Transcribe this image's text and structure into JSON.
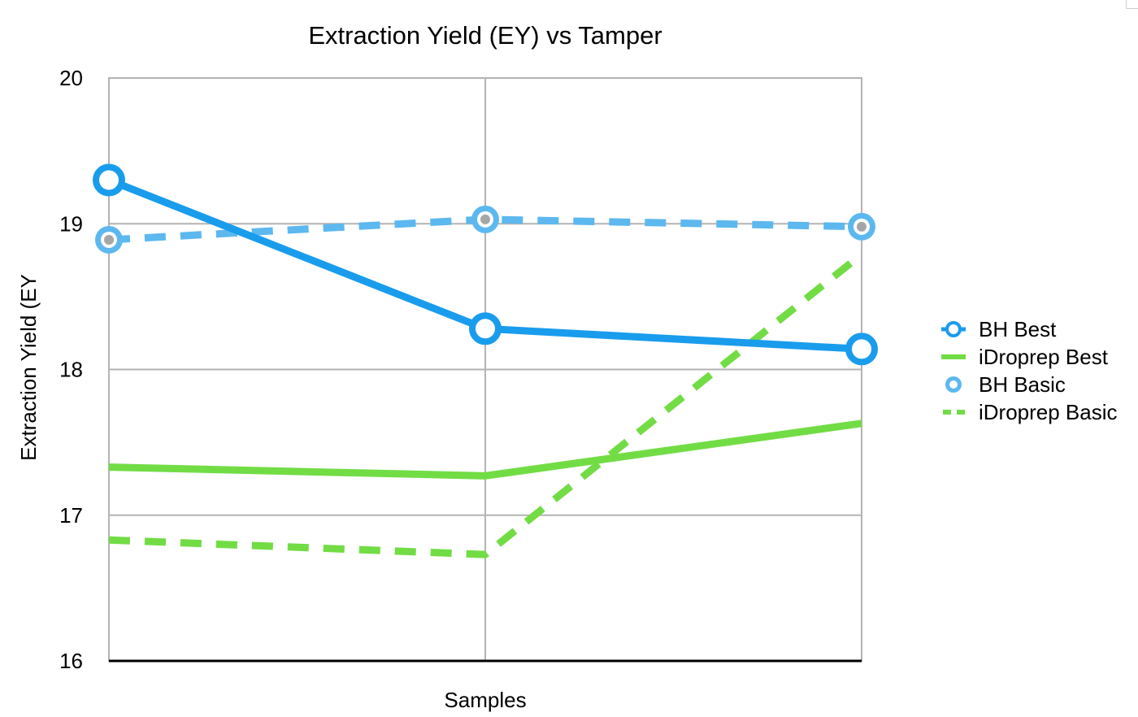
{
  "chart_data": {
    "type": "line",
    "title": "Extraction Yield (EY) vs Tamper",
    "xlabel": "Samples",
    "ylabel": "Extraction Yield (EY",
    "ylim": [
      16,
      20
    ],
    "yticks": [
      "16",
      "17",
      "18",
      "19",
      "20"
    ],
    "x_points": 3,
    "grid": true,
    "legend_position": "right",
    "series": [
      {
        "name": "BH Best",
        "values": [
          19.3,
          18.28,
          18.14
        ],
        "color": "#1a9ced",
        "style": "solid",
        "markers": "ring"
      },
      {
        "name": "iDroprep Best",
        "values": [
          17.33,
          17.27,
          17.63
        ],
        "color": "#72dc45",
        "style": "solid",
        "markers": "none"
      },
      {
        "name": "BH Basic",
        "values": [
          18.89,
          19.03,
          18.98
        ],
        "color": "#5cb8ef",
        "style": "dashed",
        "markers": "ring-gray"
      },
      {
        "name": "iDroprep Basic",
        "values": [
          16.83,
          16.73,
          18.79
        ],
        "color": "#72dc45",
        "style": "dashed",
        "markers": "none"
      }
    ]
  }
}
